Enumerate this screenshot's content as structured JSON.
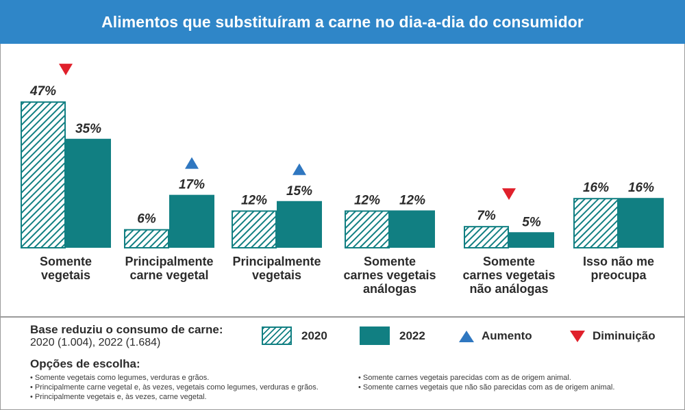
{
  "title": "Alimentos que substituíram a carne no dia-a-dia do consumidor",
  "colors": {
    "title_bg": "#2f86c8",
    "bar": "#117f82",
    "increase": "#2f77c0",
    "decrease": "#e0202b"
  },
  "chart_data": {
    "type": "bar",
    "title": "Alimentos que substituíram a carne no dia-a-dia do consumidor",
    "categories": [
      [
        "Somente",
        "vegetais"
      ],
      [
        "Principalmente",
        "carne vegetal"
      ],
      [
        "Principalmente",
        "vegetais"
      ],
      [
        "Somente",
        "carnes vegetais",
        "análogas"
      ],
      [
        "Somente",
        "carnes vegetais",
        "não análogas"
      ],
      [
        "Isso não me",
        "preocupa"
      ]
    ],
    "series": [
      {
        "name": "2020",
        "style": "hatched",
        "values": [
          47,
          6,
          12,
          12,
          7,
          16
        ]
      },
      {
        "name": "2022",
        "style": "solid",
        "values": [
          35,
          17,
          15,
          12,
          5,
          16
        ]
      }
    ],
    "value_labels": [
      [
        "47%",
        "35%"
      ],
      [
        "6%",
        "17%"
      ],
      [
        "12%",
        "15%"
      ],
      [
        "12%",
        "12%"
      ],
      [
        "7%",
        "5%"
      ],
      [
        "16%",
        "16%"
      ]
    ],
    "change_markers": [
      "decrease",
      "increase",
      "increase",
      null,
      "decrease",
      null
    ],
    "ylim": [
      0,
      50
    ],
    "grid": false,
    "legend_position": "bottom"
  },
  "legend": {
    "s2020": "2020",
    "s2022": "2022",
    "increase": "Aumento",
    "decrease": "Diminuição"
  },
  "base": {
    "title": "Base reduziu o consumo de carne:",
    "values": "2020 (1.004), 2022 (1.684)"
  },
  "options": {
    "title": "Opções de escolha:",
    "left": [
      "Somente vegetais como legumes, verduras e grãos.",
      "Principalmente carne vegetal e, às vezes, vegetais como legumes, verduras e grãos.",
      "Principalmente vegetais e, às vezes, carne vegetal."
    ],
    "right": [
      "Somente carnes vegetais parecidas com as de origem animal.",
      "Somente carnes vegetais que não são parecidas com as de origem animal."
    ]
  }
}
